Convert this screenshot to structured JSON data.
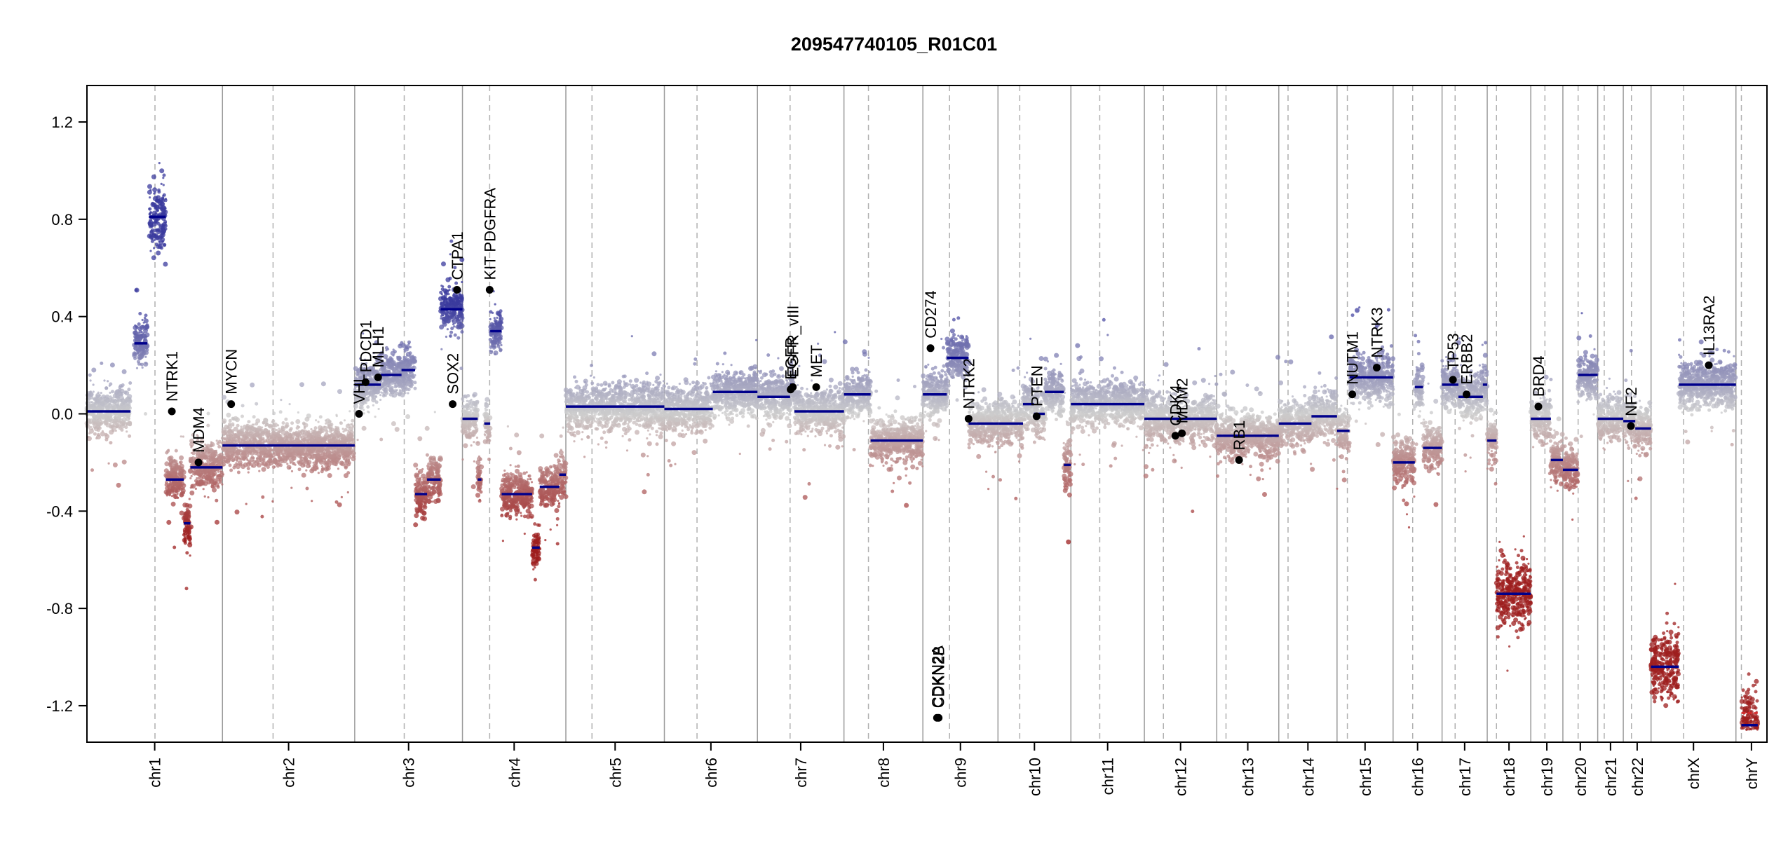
{
  "chart_data": {
    "type": "scatter",
    "title": "209547740105_R01C01",
    "xlabel": "",
    "ylabel": "",
    "ylim": [
      -1.35,
      1.35
    ],
    "yticks": [
      "1.2",
      "0.8",
      "0.4",
      "0.0",
      "-0.4",
      "-0.8",
      "-1.2"
    ],
    "ytick_values": [
      1.2,
      0.8,
      0.4,
      0.0,
      -0.4,
      -0.8,
      -1.2
    ],
    "color_scale": {
      "gain": "#3b3b9e",
      "neutral": "#cccccc",
      "loss": "#9e1f1f",
      "segment": "#00008b",
      "y_segment": "#d62728"
    },
    "chromosomes": [
      {
        "name": "chr1",
        "start": 0,
        "end": 249,
        "centromere": 125
      },
      {
        "name": "chr2",
        "start": 249,
        "end": 492,
        "centromere": 93
      },
      {
        "name": "chr3",
        "start": 492,
        "end": 690,
        "centromere": 91
      },
      {
        "name": "chr4",
        "start": 690,
        "end": 880,
        "centromere": 50
      },
      {
        "name": "chr5",
        "start": 880,
        "end": 1061,
        "centromere": 48
      },
      {
        "name": "chr6",
        "start": 1061,
        "end": 1232,
        "centromere": 60
      },
      {
        "name": "chr7",
        "start": 1232,
        "end": 1391,
        "centromere": 60
      },
      {
        "name": "chr8",
        "start": 1391,
        "end": 1536,
        "centromere": 45
      },
      {
        "name": "chr9",
        "start": 1536,
        "end": 1674,
        "centromere": 49
      },
      {
        "name": "chr10",
        "start": 1674,
        "end": 1808,
        "centromere": 40
      },
      {
        "name": "chr11",
        "start": 1808,
        "end": 1943,
        "centromere": 53
      },
      {
        "name": "chr12",
        "start": 1943,
        "end": 2076,
        "centromere": 35
      },
      {
        "name": "chr13",
        "start": 2076,
        "end": 2190,
        "centromere": 17
      },
      {
        "name": "chr14",
        "start": 2190,
        "end": 2297,
        "centromere": 17
      },
      {
        "name": "chr15",
        "start": 2297,
        "end": 2400,
        "centromere": 19
      },
      {
        "name": "chr16",
        "start": 2400,
        "end": 2490,
        "centromere": 36
      },
      {
        "name": "chr17",
        "start": 2490,
        "end": 2573,
        "centromere": 24
      },
      {
        "name": "chr18",
        "start": 2573,
        "end": 2653,
        "centromere": 17
      },
      {
        "name": "chr19",
        "start": 2653,
        "end": 2712,
        "centromere": 26
      },
      {
        "name": "chr20",
        "start": 2712,
        "end": 2776,
        "centromere": 28
      },
      {
        "name": "chr21",
        "start": 2776,
        "end": 2823,
        "centromere": 12
      },
      {
        "name": "chr22",
        "start": 2823,
        "end": 2874,
        "centromere": 15
      },
      {
        "name": "chrX",
        "start": 2874,
        "end": 3030,
        "centromere": 60
      },
      {
        "name": "chrY",
        "start": 3030,
        "end": 3087,
        "centromere": 10
      }
    ],
    "segments": [
      {
        "x0": 0,
        "x1": 80,
        "y": 0.01
      },
      {
        "x0": 87,
        "x1": 111,
        "y": 0.29
      },
      {
        "x0": 114,
        "x1": 145,
        "y": 0.81
      },
      {
        "x0": 145,
        "x1": 178,
        "y": -0.27
      },
      {
        "x0": 178,
        "x1": 190,
        "y": -0.45
      },
      {
        "x0": 190,
        "x1": 249,
        "y": -0.22
      },
      {
        "x0": 249,
        "x1": 492,
        "y": -0.13
      },
      {
        "x0": 492,
        "x1": 540,
        "y": 0.12
      },
      {
        "x0": 540,
        "x1": 578,
        "y": 0.16
      },
      {
        "x0": 578,
        "x1": 603,
        "y": 0.18
      },
      {
        "x0": 603,
        "x1": 625,
        "y": -0.33
      },
      {
        "x0": 625,
        "x1": 650,
        "y": -0.27
      },
      {
        "x0": 650,
        "x1": 690,
        "y": 0.43
      },
      {
        "x0": 690,
        "x1": 718,
        "y": -0.02
      },
      {
        "x0": 718,
        "x1": 725,
        "y": -0.27
      },
      {
        "x0": 730,
        "x1": 741,
        "y": -0.04
      },
      {
        "x0": 741,
        "x1": 762,
        "y": 0.34
      },
      {
        "x0": 762,
        "x1": 818,
        "y": -0.33
      },
      {
        "x0": 818,
        "x1": 832,
        "y": -0.55
      },
      {
        "x0": 832,
        "x1": 868,
        "y": -0.3
      },
      {
        "x0": 868,
        "x1": 880,
        "y": -0.25
      },
      {
        "x0": 880,
        "x1": 1061,
        "y": 0.03
      },
      {
        "x0": 1061,
        "x1": 1150,
        "y": 0.02
      },
      {
        "x0": 1150,
        "x1": 1232,
        "y": 0.09
      },
      {
        "x0": 1232,
        "x1": 1292,
        "y": 0.07
      },
      {
        "x0": 1292,
        "x1": 1300,
        "y": 0.12
      },
      {
        "x0": 1300,
        "x1": 1391,
        "y": 0.01
      },
      {
        "x0": 1391,
        "x1": 1440,
        "y": 0.08
      },
      {
        "x0": 1440,
        "x1": 1536,
        "y": -0.11
      },
      {
        "x0": 1536,
        "x1": 1580,
        "y": 0.08
      },
      {
        "x0": 1580,
        "x1": 1620,
        "y": 0.23
      },
      {
        "x0": 1620,
        "x1": 1674,
        "y": -0.04
      },
      {
        "x0": 1674,
        "x1": 1720,
        "y": -0.04
      },
      {
        "x0": 1720,
        "x1": 1740,
        "y": 0.04
      },
      {
        "x0": 1740,
        "x1": 1760,
        "y": 0.0
      },
      {
        "x0": 1760,
        "x1": 1795,
        "y": 0.09
      },
      {
        "x0": 1795,
        "x1": 1808,
        "y": -0.21
      },
      {
        "x0": 1808,
        "x1": 1943,
        "y": 0.04
      },
      {
        "x0": 1943,
        "x1": 2076,
        "y": -0.02
      },
      {
        "x0": 2076,
        "x1": 2190,
        "y": -0.09
      },
      {
        "x0": 2190,
        "x1": 2250,
        "y": -0.04
      },
      {
        "x0": 2250,
        "x1": 2297,
        "y": -0.01
      },
      {
        "x0": 2297,
        "x1": 2320,
        "y": -0.07
      },
      {
        "x0": 2320,
        "x1": 2400,
        "y": 0.15
      },
      {
        "x0": 2400,
        "x1": 2440,
        "y": -0.2
      },
      {
        "x0": 2440,
        "x1": 2455,
        "y": 0.11
      },
      {
        "x0": 2455,
        "x1": 2490,
        "y": -0.14
      },
      {
        "x0": 2490,
        "x1": 2520,
        "y": 0.12
      },
      {
        "x0": 2520,
        "x1": 2565,
        "y": 0.07
      },
      {
        "x0": 2565,
        "x1": 2573,
        "y": 0.12
      },
      {
        "x0": 2573,
        "x1": 2590,
        "y": -0.11
      },
      {
        "x0": 2590,
        "x1": 2653,
        "y": -0.74
      },
      {
        "x0": 2653,
        "x1": 2690,
        "y": -0.02
      },
      {
        "x0": 2690,
        "x1": 2712,
        "y": -0.19
      },
      {
        "x0": 2712,
        "x1": 2740,
        "y": -0.23
      },
      {
        "x0": 2740,
        "x1": 2776,
        "y": 0.16
      },
      {
        "x0": 2776,
        "x1": 2823,
        "y": -0.02
      },
      {
        "x0": 2823,
        "x1": 2845,
        "y": -0.03
      },
      {
        "x0": 2845,
        "x1": 2874,
        "y": -0.06
      },
      {
        "x0": 2874,
        "x1": 2925,
        "y": -1.04
      },
      {
        "x0": 2925,
        "x1": 3030,
        "y": 0.12
      },
      {
        "x0": 3040,
        "x1": 3070,
        "y": -1.28
      }
    ],
    "genes": [
      {
        "name": "NTRK1",
        "x": 156,
        "y": 0.01
      },
      {
        "name": "MDM4",
        "x": 205,
        "y": -0.2
      },
      {
        "name": "MYCN",
        "x": 265,
        "y": 0.04
      },
      {
        "name": "VHL",
        "x": 500,
        "y": 0.0
      },
      {
        "name": "PDCD1",
        "x": 512,
        "y": 0.13
      },
      {
        "name": "MLH1",
        "x": 535,
        "y": 0.15
      },
      {
        "name": "SOX2",
        "x": 672,
        "y": 0.04
      },
      {
        "name": "CTPA1",
        "x": 680,
        "y": 0.51
      },
      {
        "name": "KIT PDGFRA",
        "x": 740,
        "y": 0.51
      },
      {
        "name": "EGFR",
        "x": 1293,
        "y": 0.1
      },
      {
        "name": "EGFR_vIII",
        "x": 1297,
        "y": 0.11
      },
      {
        "name": "MET",
        "x": 1340,
        "y": 0.11
      },
      {
        "name": "CD274",
        "x": 1550,
        "y": 0.27
      },
      {
        "name": "CDKN2A",
        "x": 1562,
        "y": -1.25
      },
      {
        "name": "CDKN2B",
        "x": 1565,
        "y": -1.25
      },
      {
        "name": "NTRK2",
        "x": 1620,
        "y": -0.02
      },
      {
        "name": "PTEN",
        "x": 1745,
        "y": -0.01
      },
      {
        "name": "CDK4",
        "x": 2000,
        "y": -0.09
      },
      {
        "name": "MDM2",
        "x": 2012,
        "y": -0.08
      },
      {
        "name": "RB1",
        "x": 2117,
        "y": -0.19
      },
      {
        "name": "NUTM1",
        "x": 2325,
        "y": 0.08
      },
      {
        "name": "NTRK3",
        "x": 2370,
        "y": 0.19
      },
      {
        "name": "TP53",
        "x": 2510,
        "y": 0.14
      },
      {
        "name": "ERBB2",
        "x": 2535,
        "y": 0.08
      },
      {
        "name": "BRD4",
        "x": 2667,
        "y": 0.03
      },
      {
        "name": "NF2",
        "x": 2837,
        "y": -0.05
      },
      {
        "name": "IL13RA2",
        "x": 2980,
        "y": 0.2
      }
    ]
  }
}
